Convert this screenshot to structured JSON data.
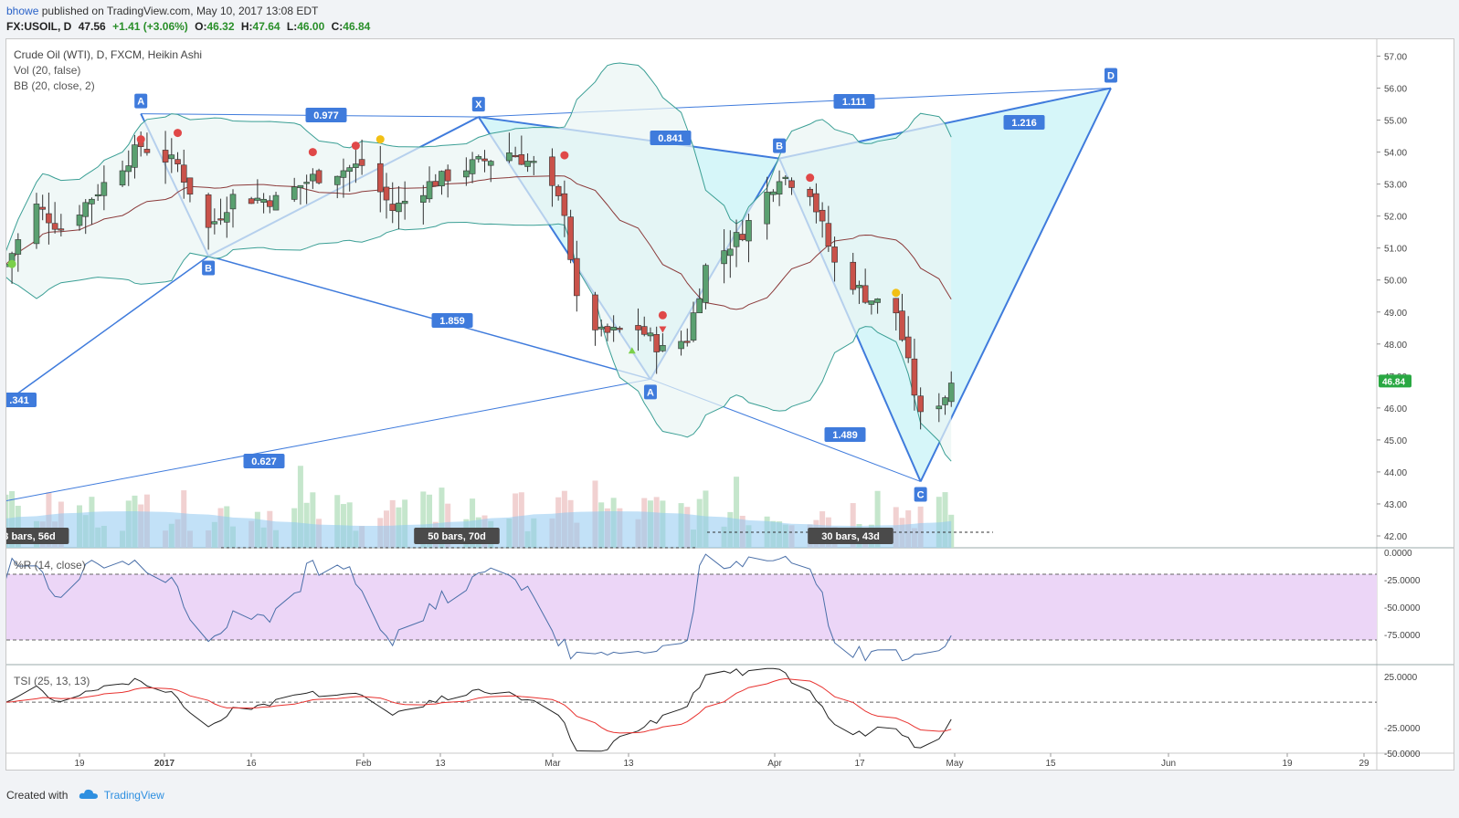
{
  "header": {
    "user": "bhowe",
    "published": "published on TradingView.com, May 10, 2017 13:08 EDT"
  },
  "quote": {
    "symbol": "FX:USOIL, D",
    "last": "47.56",
    "change": "+1.41 (+3.06%)",
    "open_label": "O:",
    "open": "46.32",
    "high_label": "H:",
    "high": "47.64",
    "low_label": "L:",
    "low": "46.00",
    "close_label": "C:",
    "close": "46.84"
  },
  "legend": {
    "main": "Crude Oil (WTI), D, FXCM, Heikin Ashi",
    "vol": "Vol (20, false)",
    "bb": "BB (20, close, 2)",
    "wr": "%R (14, close)",
    "tsi": "TSI (25, 13, 13)"
  },
  "footer": {
    "created": "Created with",
    "brand": "TradingView"
  },
  "colors": {
    "up": "#5aa070",
    "down": "#c9524a",
    "pattern_line": "#3f7bdc",
    "pattern_fill": "#c8f3f7",
    "bb_band": "#3b9f95",
    "bb_mid": "#8b3a3a",
    "wr_fill": "#ecd6f7",
    "tsi": "#222222",
    "tsi_signal": "#e8322f",
    "last_price_badge": "#2aa843"
  },
  "chart_data": [
    {
      "type": "candlestick",
      "title": "Crude Oil (WTI), D, FXCM, Heikin Ashi",
      "y_ticks": [
        "42.00",
        "43.00",
        "44.00",
        "45.00",
        "46.00",
        "47.00",
        "48.00",
        "49.00",
        "50.00",
        "51.00",
        "52.00",
        "53.00",
        "54.00",
        "55.00",
        "56.00",
        "57.00"
      ],
      "ylim": [
        41.8,
        57.3
      ],
      "x_ticks": [
        "19",
        "2017",
        "16",
        "Feb",
        "13",
        "Mar",
        "13",
        "Apr",
        "17",
        "May",
        "15",
        "Jun",
        "19",
        "29"
      ],
      "last_price": "46.84",
      "pattern_points": [
        {
          "label": "A",
          "date": "2016-12-29",
          "price": 55.2
        },
        {
          "label": "B",
          "date": "2017-01-09",
          "price": 50.75
        },
        {
          "label": "X",
          "date": "2017-02-22",
          "price": 55.1
        },
        {
          "label": "A",
          "date": "2017-03-22",
          "price": 46.9
        },
        {
          "label": "B",
          "date": "2017-04-12",
          "price": 53.8
        },
        {
          "label": "C",
          "date": "2017-05-05",
          "price": 43.7
        },
        {
          "label": "D",
          "date": "2017-06-05",
          "price": 56.0
        }
      ],
      "ratio_labels": [
        "0.977",
        "1.111",
        "0.841",
        "1.216",
        "1.859",
        "1.489",
        "0.627",
        ".341"
      ],
      "bar_count_labels": [
        "3 bars, 56d",
        "50 bars, 70d",
        "30 bars, 43d"
      ]
    },
    {
      "type": "line",
      "name": "%R (14, close)",
      "y_ticks": [
        "0.0000",
        "-25.0000",
        "-50.0000",
        "-75.0000"
      ],
      "ylim": [
        -100,
        0
      ]
    },
    {
      "type": "line",
      "name": "TSI (25, 13, 13)",
      "y_ticks": [
        "25.0000",
        "-25.0000",
        "-50.0000"
      ],
      "ylim": [
        -50,
        35
      ]
    }
  ]
}
